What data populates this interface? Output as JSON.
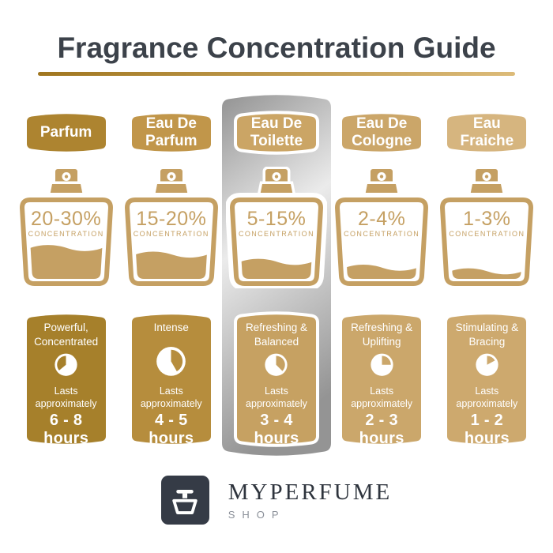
{
  "title": "Fragrance Concentration Guide",
  "underline_gradient": [
    "#a0761f",
    "#dcbb79"
  ],
  "strip_gradient": [
    "#939393",
    "#ebebeb",
    "#949494"
  ],
  "bottle": {
    "outline_color": "#c5a063",
    "concentration_label": "CONCENTRATION"
  },
  "columns": [
    {
      "name": "Parfum",
      "banner_color": "#ad8430",
      "card_color": "#a6802b",
      "concentration": "20-30%",
      "fill_percent": 42,
      "description": "Powerful,\nConcentrated",
      "lasts": "Lasts\napproximately",
      "duration": "6 - 8 hours",
      "pie": {
        "start": 230,
        "end": 360
      },
      "highlighted": false
    },
    {
      "name": "Eau De\nParfum",
      "banner_color": "#c1964a",
      "card_color": "#b68d3d",
      "concentration": "15-20%",
      "fill_percent": 33,
      "description": "Intense",
      "lasts": "Lasts\napproximately",
      "duration": "4 - 5 hours",
      "pie": {
        "start": 0,
        "end": 150
      },
      "highlighted": false
    },
    {
      "name": "Eau De\nToilette",
      "banner_color": "#cba565",
      "card_color": "#c6a162",
      "concentration": "5-15%",
      "fill_percent": 23,
      "description": "Refreshing &\nBalanced",
      "lasts": "Lasts\napproximately",
      "duration": "3 - 4 hours",
      "pie": {
        "start": 0,
        "end": 135
      },
      "highlighted": true
    },
    {
      "name": "Eau De\nCologne",
      "banner_color": "#cba669",
      "card_color": "#cba76b",
      "concentration": "2-4%",
      "fill_percent": 15,
      "description": "Refreshing &\nUplifting",
      "lasts": "Lasts\napproximately",
      "duration": "2 - 3 hours",
      "pie": {
        "start": 0,
        "end": 90
      },
      "highlighted": false
    },
    {
      "name": "Eau\nFraiche",
      "banner_color": "#d6b57f",
      "card_color": "#cda96e",
      "concentration": "1-3%",
      "fill_percent": 10,
      "description": "Stimulating &\nBracing",
      "lasts": "Lasts\napproximately",
      "duration": "1 - 2 hours",
      "pie": {
        "start": 0,
        "end": 62
      },
      "highlighted": false
    }
  ],
  "logo": {
    "brand": "MYPERFUME",
    "sub": "SHOP",
    "square_color": "#353b46"
  }
}
